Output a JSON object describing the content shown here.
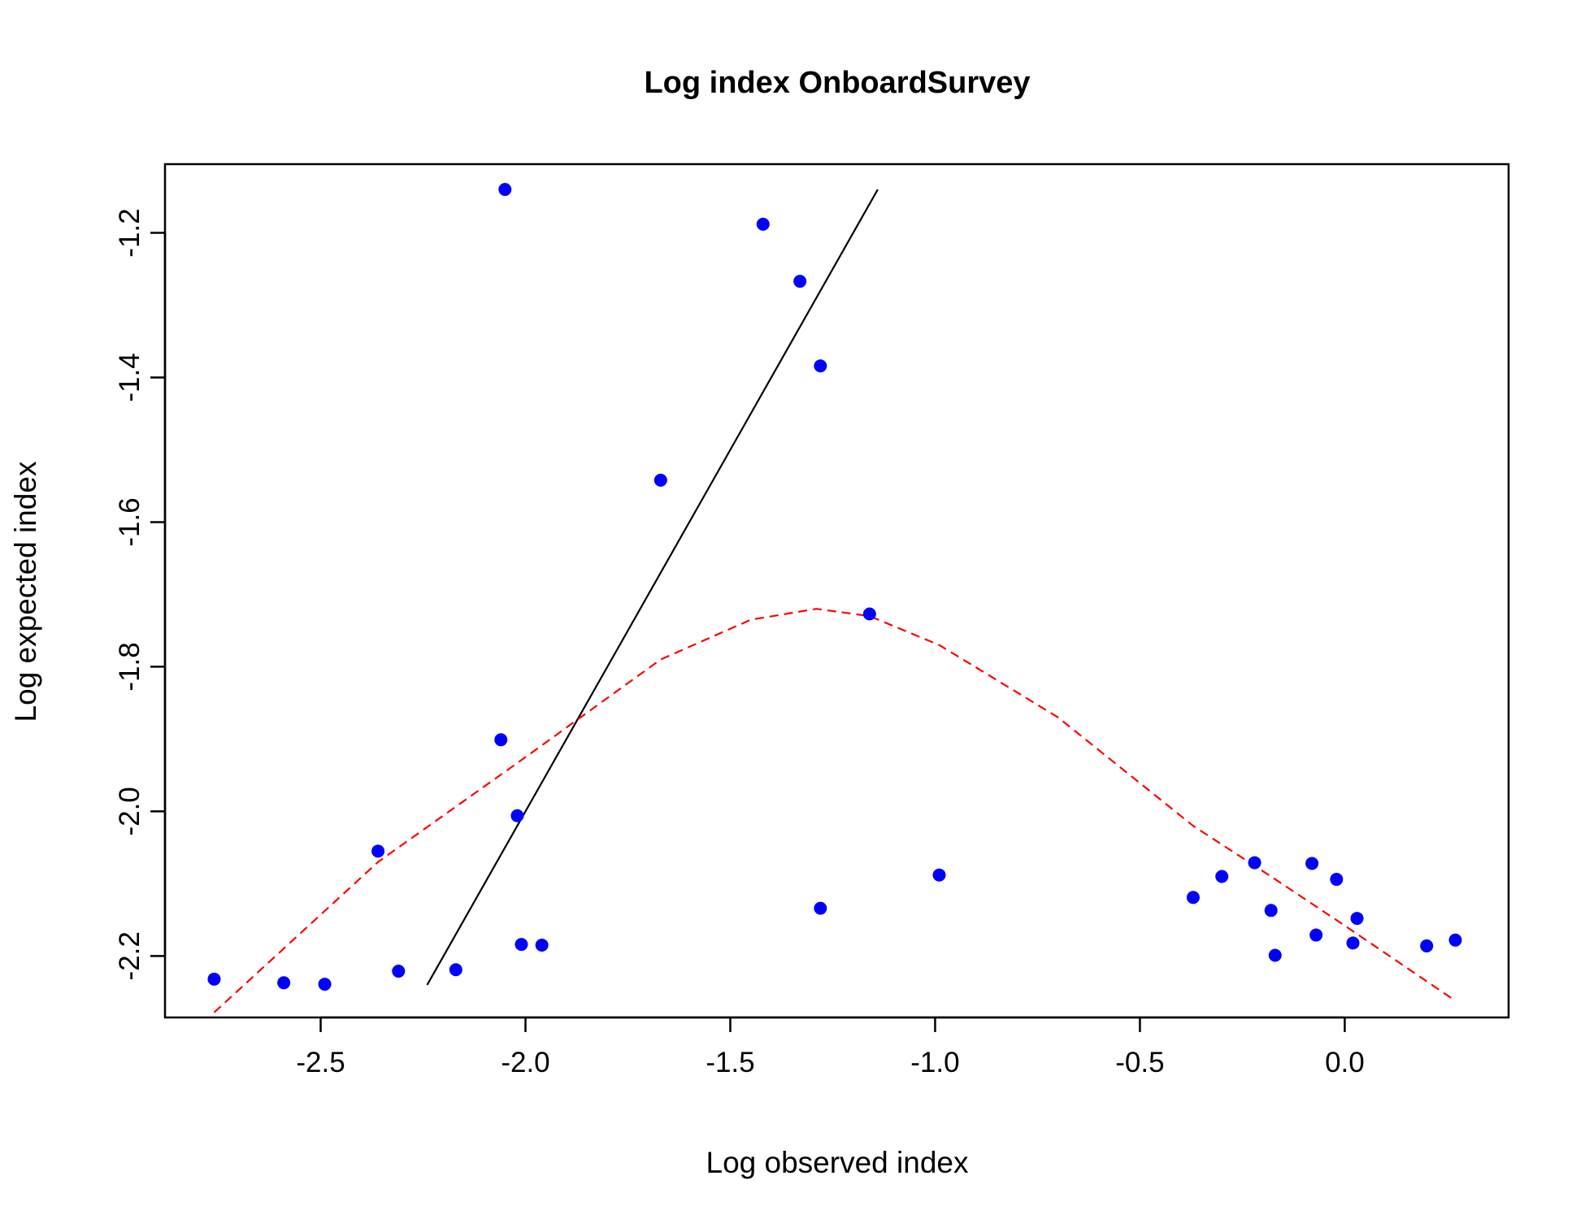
{
  "chart_data": {
    "type": "scatter",
    "title": "Log index OnboardSurvey",
    "xlabel": "Log observed index",
    "ylabel": "Log expected index",
    "xlim": [
      -2.88,
      0.4
    ],
    "ylim": [
      -2.285,
      -1.105
    ],
    "xticks": [
      {
        "value": -2.5,
        "label": "-2.5"
      },
      {
        "value": -2.0,
        "label": "-2.0"
      },
      {
        "value": -1.5,
        "label": "-1.5"
      },
      {
        "value": -1.0,
        "label": "-1.0"
      },
      {
        "value": -0.5,
        "label": "-0.5"
      },
      {
        "value": 0.0,
        "label": "0.0"
      }
    ],
    "yticks": [
      {
        "value": -2.2,
        "label": "-2.2"
      },
      {
        "value": -2.0,
        "label": "-2.0"
      },
      {
        "value": -1.8,
        "label": "-1.8"
      },
      {
        "value": -1.6,
        "label": "-1.6"
      },
      {
        "value": -1.4,
        "label": "-1.4"
      },
      {
        "value": -1.2,
        "label": "-1.2"
      }
    ],
    "grid": false,
    "colors": {
      "points": "#0000ff",
      "fit_line": "#000000",
      "smooth_line": "#ff0000"
    },
    "points": [
      {
        "x": -2.76,
        "y": -2.232
      },
      {
        "x": -2.59,
        "y": -2.237
      },
      {
        "x": -2.49,
        "y": -2.239
      },
      {
        "x": -2.36,
        "y": -2.055
      },
      {
        "x": -2.31,
        "y": -2.221
      },
      {
        "x": -2.17,
        "y": -2.219
      },
      {
        "x": -2.06,
        "y": -1.901
      },
      {
        "x": -2.05,
        "y": -1.14
      },
      {
        "x": -2.02,
        "y": -2.006
      },
      {
        "x": -2.01,
        "y": -2.184
      },
      {
        "x": -1.96,
        "y": -2.185
      },
      {
        "x": -1.67,
        "y": -1.542
      },
      {
        "x": -1.42,
        "y": -1.188
      },
      {
        "x": -1.33,
        "y": -1.267
      },
      {
        "x": -1.28,
        "y": -1.384
      },
      {
        "x": -1.28,
        "y": -2.134
      },
      {
        "x": -1.16,
        "y": -1.727
      },
      {
        "x": -0.99,
        "y": -2.088
      },
      {
        "x": -0.37,
        "y": -2.119
      },
      {
        "x": -0.3,
        "y": -2.09
      },
      {
        "x": -0.22,
        "y": -2.071
      },
      {
        "x": -0.18,
        "y": -2.137
      },
      {
        "x": -0.17,
        "y": -2.199
      },
      {
        "x": -0.08,
        "y": -2.072
      },
      {
        "x": -0.07,
        "y": -2.171
      },
      {
        "x": -0.02,
        "y": -2.094
      },
      {
        "x": 0.02,
        "y": -2.182
      },
      {
        "x": 0.03,
        "y": -2.148
      },
      {
        "x": 0.2,
        "y": -2.186
      },
      {
        "x": 0.27,
        "y": -2.178
      }
    ],
    "fit_line": [
      {
        "x": -2.24,
        "y": -2.24
      },
      {
        "x": -1.14,
        "y": -1.14
      }
    ],
    "smooth_line": [
      {
        "x": -2.76,
        "y": -2.278
      },
      {
        "x": -2.36,
        "y": -2.07
      },
      {
        "x": -2.0,
        "y": -1.925
      },
      {
        "x": -1.67,
        "y": -1.79
      },
      {
        "x": -1.45,
        "y": -1.735
      },
      {
        "x": -1.29,
        "y": -1.72
      },
      {
        "x": -1.16,
        "y": -1.73
      },
      {
        "x": -0.99,
        "y": -1.77
      },
      {
        "x": -0.7,
        "y": -1.87
      },
      {
        "x": -0.37,
        "y": -2.02
      },
      {
        "x": -0.18,
        "y": -2.09
      },
      {
        "x": 0.0,
        "y": -2.158
      },
      {
        "x": 0.27,
        "y": -2.262
      }
    ]
  }
}
